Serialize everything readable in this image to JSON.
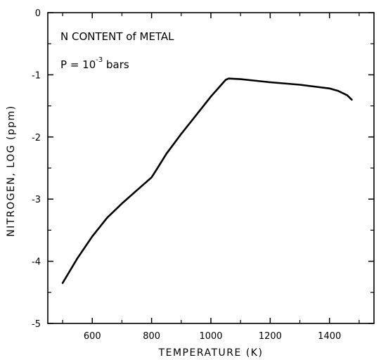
{
  "chart_data": {
    "type": "line",
    "title": "",
    "xlabel": "TEMPERATURE (K)",
    "ylabel": "NITROGEN, LOG (ppm)",
    "xlim": [
      450,
      1550
    ],
    "ylim": [
      -5,
      0
    ],
    "x_ticks": [
      600,
      800,
      1000,
      1200,
      1400
    ],
    "x_tick_labels": [
      "600",
      "800",
      "1000",
      "1200",
      "1400"
    ],
    "y_ticks": [
      0,
      -1,
      -2,
      -3,
      -4,
      -5
    ],
    "y_tick_labels": [
      "0",
      "-1",
      "-2",
      "-3",
      "-4",
      "-5"
    ],
    "grid": false,
    "annotations": {
      "line1": "N CONTENT of METAL",
      "line2_prefix": "P = 10",
      "line2_exponent": "-3",
      "line2_suffix": " bars"
    },
    "series": [
      {
        "x": [
          500,
          550,
          600,
          650,
          700,
          750,
          800,
          820,
          850,
          900,
          950,
          1000,
          1050,
          1060,
          1100,
          1200,
          1300,
          1400,
          1430,
          1460,
          1475
        ],
        "y": [
          -4.35,
          -3.95,
          -3.6,
          -3.3,
          -3.07,
          -2.86,
          -2.65,
          -2.5,
          -2.27,
          -1.95,
          -1.65,
          -1.35,
          -1.08,
          -1.06,
          -1.07,
          -1.12,
          -1.16,
          -1.22,
          -1.26,
          -1.33,
          -1.4
        ]
      }
    ]
  }
}
